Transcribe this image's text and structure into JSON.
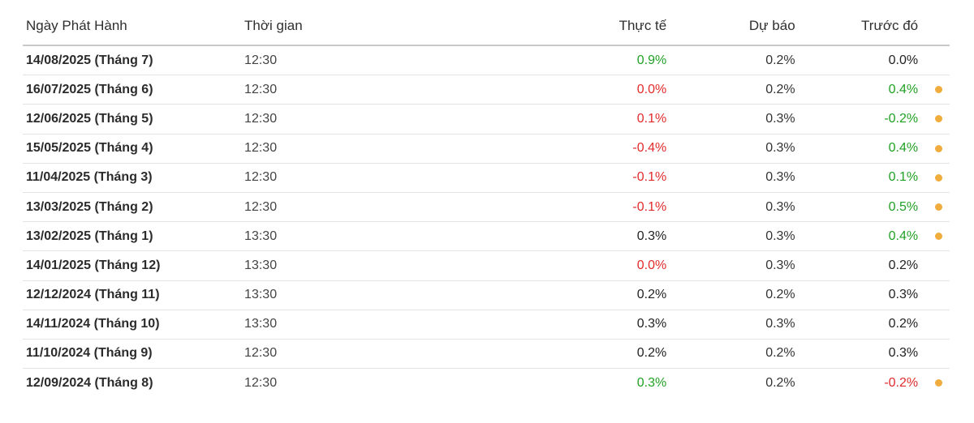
{
  "colors": {
    "positive": "#21a125",
    "negative": "#e22b2b",
    "neutral": "#222222",
    "revision_dot": "#f0ac3c"
  },
  "columns": {
    "date": "Ngày Phát Hành",
    "time": "Thời gian",
    "actual": "Thực tế",
    "forecast": "Dự báo",
    "previous": "Trước đó"
  },
  "rows": [
    {
      "date": "14/08/2025 (Tháng 7)",
      "time": "12:30",
      "actual": "0.9%",
      "actual_status": "positive",
      "forecast": "0.2%",
      "previous": "0.0%",
      "previous_status": "neutral",
      "revised": false
    },
    {
      "date": "16/07/2025 (Tháng 6)",
      "time": "12:30",
      "actual": "0.0%",
      "actual_status": "negative",
      "forecast": "0.2%",
      "previous": "0.4%",
      "previous_status": "positive",
      "revised": true
    },
    {
      "date": "12/06/2025 (Tháng 5)",
      "time": "12:30",
      "actual": "0.1%",
      "actual_status": "negative",
      "forecast": "0.3%",
      "previous": "-0.2%",
      "previous_status": "positive",
      "revised": true
    },
    {
      "date": "15/05/2025 (Tháng 4)",
      "time": "12:30",
      "actual": "-0.4%",
      "actual_status": "negative",
      "forecast": "0.3%",
      "previous": "0.4%",
      "previous_status": "positive",
      "revised": true
    },
    {
      "date": "11/04/2025 (Tháng 3)",
      "time": "12:30",
      "actual": "-0.1%",
      "actual_status": "negative",
      "forecast": "0.3%",
      "previous": "0.1%",
      "previous_status": "positive",
      "revised": true
    },
    {
      "date": "13/03/2025 (Tháng 2)",
      "time": "12:30",
      "actual": "-0.1%",
      "actual_status": "negative",
      "forecast": "0.3%",
      "previous": "0.5%",
      "previous_status": "positive",
      "revised": true
    },
    {
      "date": "13/02/2025 (Tháng 1)",
      "time": "13:30",
      "actual": "0.3%",
      "actual_status": "neutral",
      "forecast": "0.3%",
      "previous": "0.4%",
      "previous_status": "positive",
      "revised": true
    },
    {
      "date": "14/01/2025 (Tháng 12)",
      "time": "13:30",
      "actual": "0.0%",
      "actual_status": "negative",
      "forecast": "0.3%",
      "previous": "0.2%",
      "previous_status": "neutral",
      "revised": false
    },
    {
      "date": "12/12/2024 (Tháng 11)",
      "time": "13:30",
      "actual": "0.2%",
      "actual_status": "neutral",
      "forecast": "0.2%",
      "previous": "0.3%",
      "previous_status": "neutral",
      "revised": false
    },
    {
      "date": "14/11/2024 (Tháng 10)",
      "time": "13:30",
      "actual": "0.3%",
      "actual_status": "neutral",
      "forecast": "0.3%",
      "previous": "0.2%",
      "previous_status": "neutral",
      "revised": false
    },
    {
      "date": "11/10/2024 (Tháng 9)",
      "time": "12:30",
      "actual": "0.2%",
      "actual_status": "neutral",
      "forecast": "0.2%",
      "previous": "0.3%",
      "previous_status": "neutral",
      "revised": false
    },
    {
      "date": "12/09/2024 (Tháng 8)",
      "time": "12:30",
      "actual": "0.3%",
      "actual_status": "positive",
      "forecast": "0.2%",
      "previous": "-0.2%",
      "previous_status": "negative",
      "revised": true
    }
  ]
}
